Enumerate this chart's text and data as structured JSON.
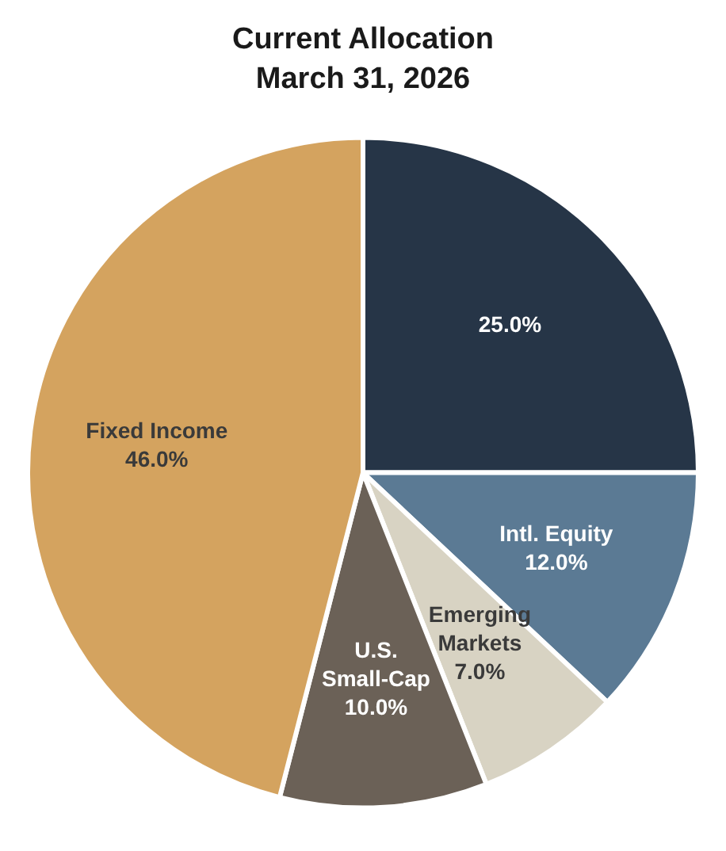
{
  "chart_data": {
    "type": "pie",
    "title": "Current Allocation",
    "subtitle": "March 31, 2026",
    "categories": [
      null,
      "Intl. Equity",
      "Emerging Markets",
      "U.S. Small-Cap",
      "Fixed Income"
    ],
    "values": [
      25.0,
      12.0,
      7.0,
      10.0,
      46.0
    ],
    "colors": [
      "#263547",
      "#5b7a94",
      "#d8d3c3",
      "#6b6157",
      "#d4a35f"
    ],
    "value_labels": [
      "25.0%",
      "12.0%",
      "7.0%",
      "10.0%",
      "46.0%"
    ],
    "legend": false
  }
}
